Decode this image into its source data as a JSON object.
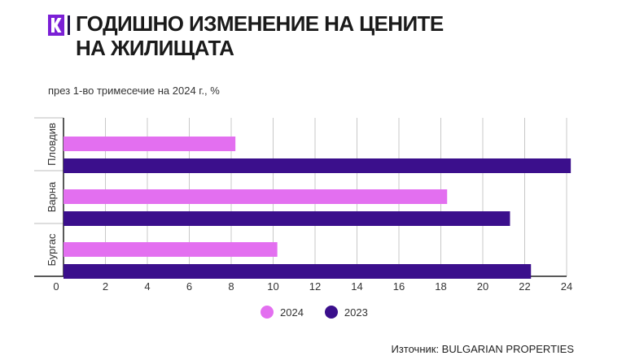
{
  "header": {
    "title_line1": "ГОДИШНО ИЗМЕНЕНИЕ НА ЦЕНИТЕ",
    "title_line2": "НА ЖИЛИЩАТА",
    "logo_icon": "k-logo-icon",
    "brand_color": "#7b1fd6"
  },
  "source_text": "Източник: BULGARIAN PROPERTIES",
  "chart_data": {
    "type": "bar",
    "orientation": "horizontal",
    "subtitle": "през 1-во тримесечие на 2024 г., %",
    "categories": [
      "Пловдив",
      "Варна",
      "Бургас"
    ],
    "series": [
      {
        "name": "2024",
        "color": "#e36ff0",
        "values": [
          8.2,
          18.3,
          10.2
        ]
      },
      {
        "name": "2023",
        "color": "#3b0f8c",
        "values": [
          24.2,
          21.3,
          22.3
        ]
      }
    ],
    "xlim": [
      0,
      24
    ],
    "xticks": [
      0,
      2,
      4,
      6,
      8,
      10,
      12,
      14,
      16,
      18,
      20,
      22,
      24
    ],
    "grid": true,
    "legend_position": "bottom"
  }
}
